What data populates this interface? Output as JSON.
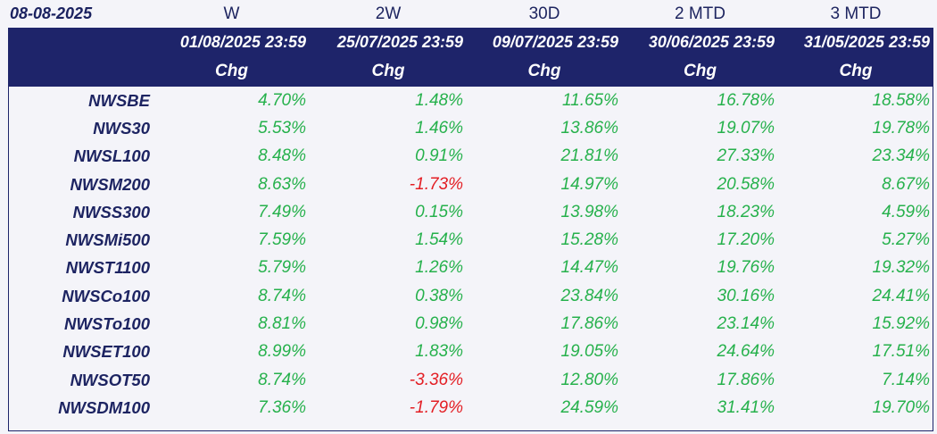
{
  "report_date": "08-08-2025",
  "periods": [
    {
      "label": "W",
      "date": "01/08/2025 23:59",
      "chg": "Chg"
    },
    {
      "label": "2W",
      "date": "25/07/2025 23:59",
      "chg": "Chg"
    },
    {
      "label": "30D",
      "date": "09/07/2025 23:59",
      "chg": "Chg"
    },
    {
      "label": "2 MTD",
      "date": "30/06/2025 23:59",
      "chg": "Chg"
    },
    {
      "label": "3 MTD",
      "date": "31/05/2025 23:59",
      "chg": "Chg"
    }
  ],
  "colors": {
    "header_bg": "#1e246a",
    "positive": "#26b14c",
    "negative": "#e31e24",
    "index_name": "#1d2462"
  },
  "rows": [
    {
      "name": "NWSBE",
      "values": [
        "4.70%",
        "1.48%",
        "11.65%",
        "16.78%",
        "18.58%"
      ]
    },
    {
      "name": "NWS30",
      "values": [
        "5.53%",
        "1.46%",
        "13.86%",
        "19.07%",
        "19.78%"
      ]
    },
    {
      "name": "NWSL100",
      "values": [
        "8.48%",
        "0.91%",
        "21.81%",
        "27.33%",
        "23.34%"
      ]
    },
    {
      "name": "NWSM200",
      "values": [
        "8.63%",
        "-1.73%",
        "14.97%",
        "20.58%",
        "8.67%"
      ]
    },
    {
      "name": "NWSS300",
      "values": [
        "7.49%",
        "0.15%",
        "13.98%",
        "18.23%",
        "4.59%"
      ]
    },
    {
      "name": "NWSMi500",
      "values": [
        "7.59%",
        "1.54%",
        "15.28%",
        "17.20%",
        "5.27%"
      ]
    },
    {
      "name": "NWST1100",
      "values": [
        "5.79%",
        "1.26%",
        "14.47%",
        "19.76%",
        "19.32%"
      ]
    },
    {
      "name": "NWSCo100",
      "values": [
        "8.74%",
        "0.38%",
        "23.84%",
        "30.16%",
        "24.41%"
      ]
    },
    {
      "name": "NWSTo100",
      "values": [
        "8.81%",
        "0.98%",
        "17.86%",
        "23.14%",
        "15.92%"
      ]
    },
    {
      "name": "NWSET100",
      "values": [
        "8.99%",
        "1.83%",
        "19.05%",
        "24.64%",
        "17.51%"
      ]
    },
    {
      "name": "NWSOT50",
      "values": [
        "8.74%",
        "-3.36%",
        "12.80%",
        "17.86%",
        "7.14%"
      ]
    },
    {
      "name": "NWSDM100",
      "values": [
        "7.36%",
        "-1.79%",
        "24.59%",
        "31.41%",
        "19.70%"
      ]
    }
  ]
}
